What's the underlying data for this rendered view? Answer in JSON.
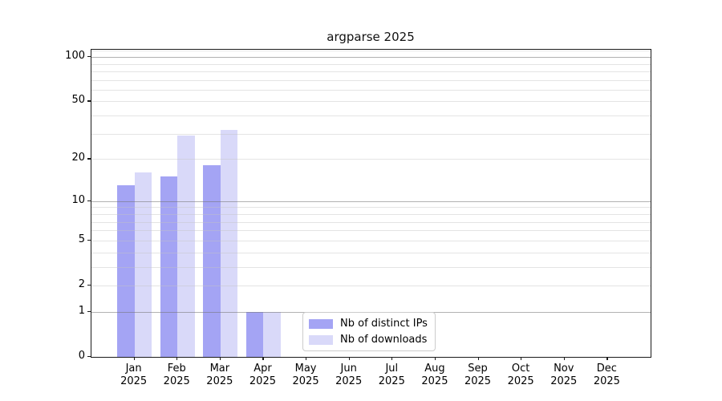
{
  "title": "argparse 2025",
  "chart_data": {
    "type": "bar",
    "title": "argparse 2025",
    "categories": [
      "Jan 2025",
      "Feb 2025",
      "Mar 2025",
      "Apr 2025",
      "May 2025",
      "Jun 2025",
      "Jul 2025",
      "Aug 2025",
      "Sep 2025",
      "Oct 2025",
      "Nov 2025",
      "Dec 2025"
    ],
    "x_tick_month_labels": [
      "Jan",
      "Feb",
      "Mar",
      "Apr",
      "May",
      "Jun",
      "Jul",
      "Aug",
      "Sep",
      "Oct",
      "Nov",
      "Dec"
    ],
    "x_tick_year_label": "2025",
    "series": [
      {
        "name": "Nb of distinct IPs",
        "color": "#a4a4f4",
        "values": [
          13,
          15,
          18,
          1,
          0,
          0,
          0,
          0,
          0,
          0,
          0,
          0
        ]
      },
      {
        "name": "Nb of downloads",
        "color": "#d9d9f9",
        "values": [
          16,
          29,
          32,
          1,
          0,
          0,
          0,
          0,
          0,
          0,
          0,
          0
        ]
      }
    ],
    "bar_layout": "grouped",
    "yscale": "log1p",
    "ylim": [
      0,
      112
    ],
    "y_tick_values": [
      0,
      1,
      2,
      5,
      10,
      20,
      50,
      100
    ],
    "y_tick_labels": [
      "0",
      "1",
      "2",
      "5",
      "10",
      "20",
      "50",
      "100"
    ],
    "y_major_gridlines": [
      1,
      10,
      100
    ],
    "y_minor_gridlines": [
      2,
      3,
      4,
      5,
      6,
      7,
      8,
      9,
      20,
      30,
      40,
      50,
      60,
      70,
      80,
      90,
      110
    ],
    "grid": "horizontal",
    "legend_position": "lower center",
    "xlabel": "",
    "ylabel": ""
  }
}
